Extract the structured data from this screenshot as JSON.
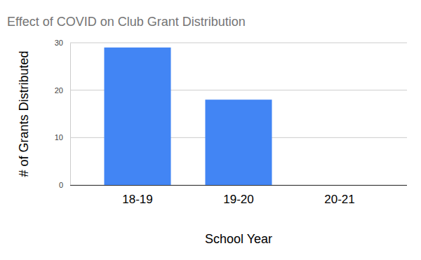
{
  "chart_data": {
    "type": "bar",
    "title": "Effect of COVID on Club Grant Distribution",
    "x_label": "School Year",
    "y_label": "# of Grants Distributed",
    "categories": [
      "18-19",
      "19-20",
      "20-21"
    ],
    "values": [
      29,
      18,
      0
    ],
    "color": "#4285f4",
    "ylim": [
      0,
      30
    ],
    "yticks": [
      0,
      10,
      20,
      30
    ],
    "grid": true
  }
}
